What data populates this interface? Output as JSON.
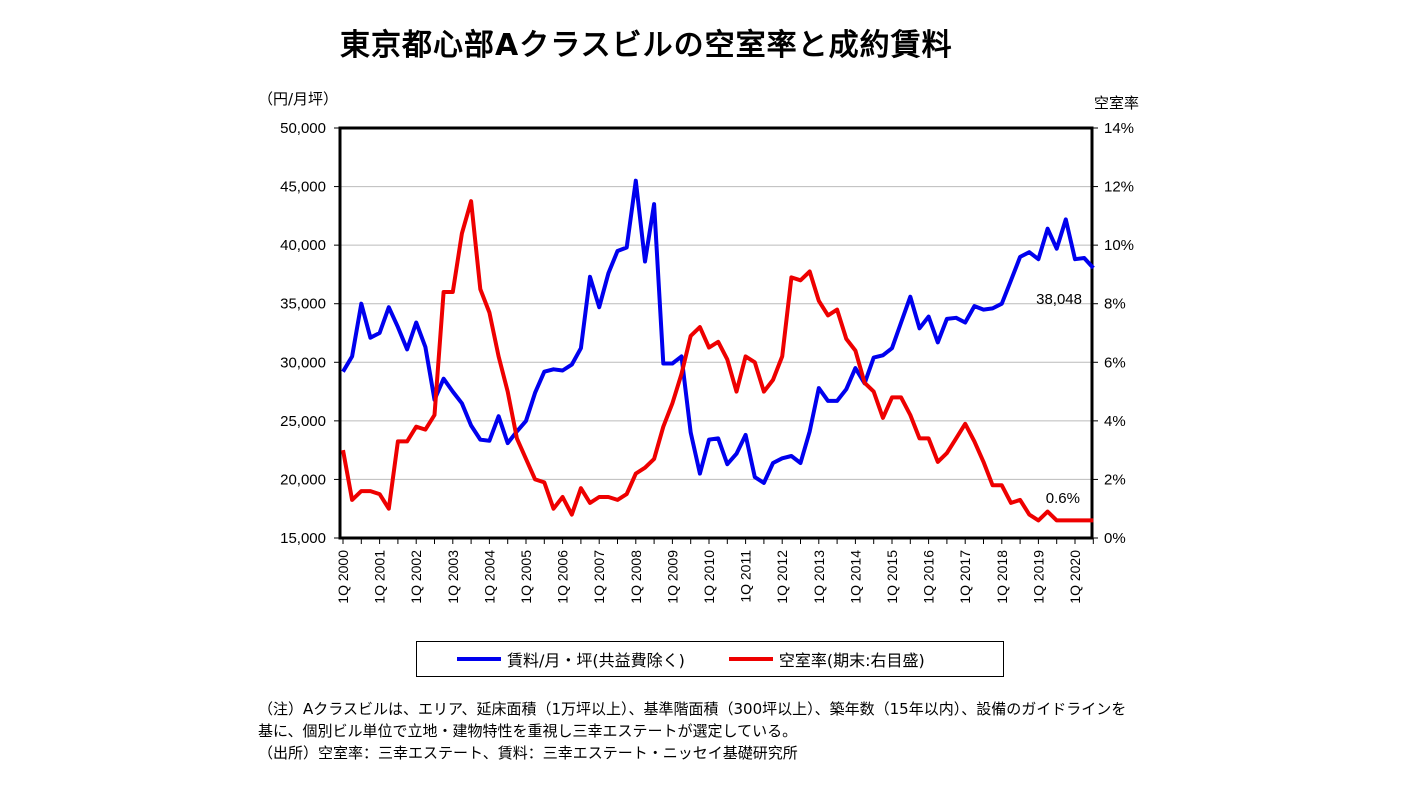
{
  "chart_data": {
    "type": "line",
    "title": "東京都心部Aクラスビルの空室率と成約賃料",
    "ylabel_left": "（円/月坪）",
    "ylabel_right": "空室率",
    "ylim_left": [
      15000,
      50000
    ],
    "yticks_left": [
      "15,000",
      "20,000",
      "25,000",
      "30,000",
      "35,000",
      "40,000",
      "45,000",
      "50,000"
    ],
    "ylim_right": [
      0,
      14
    ],
    "yticks_right": [
      "0%",
      "2%",
      "4%",
      "6%",
      "8%",
      "10%",
      "12%",
      "14%"
    ],
    "xticks": [
      "1Q 2000",
      "1Q 2001",
      "1Q 2002",
      "1Q 2003",
      "1Q 2004",
      "1Q 2005",
      "1Q 2006",
      "1Q 2007",
      "1Q 2008",
      "1Q 2009",
      "1Q 2010",
      "1Q 2011",
      "1Q 2012",
      "1Q 2013",
      "1Q 2014",
      "1Q 2015",
      "1Q 2016",
      "1Q 2017",
      "1Q 2018",
      "1Q 2019",
      "1Q 2020"
    ],
    "x_start": "1Q 2000",
    "x_end": "3Q 2020",
    "frequency": "quarterly",
    "grid": true,
    "legend_position": "bottom",
    "series": [
      {
        "name": "賃料/月・坪(共益費除く)",
        "axis": "left",
        "color": "#0000ee",
        "values": [
          29200,
          30500,
          35000,
          32100,
          32500,
          34700,
          33000,
          31100,
          33400,
          31300,
          26800,
          28600,
          27500,
          26500,
          24600,
          23400,
          23300,
          25400,
          23100,
          24100,
          25000,
          27400,
          29200,
          29400,
          29300,
          29800,
          31200,
          37300,
          34700,
          37600,
          39500,
          39800,
          45500,
          38600,
          43500,
          29900,
          29900,
          30500,
          24000,
          20500,
          23400,
          23500,
          21300,
          22200,
          23800,
          20200,
          19700,
          21400,
          21800,
          22000,
          21400,
          24100,
          27800,
          26700,
          26700,
          27700,
          29500,
          28200,
          30400,
          30600,
          31200,
          33400,
          35600,
          32900,
          33900,
          31700,
          33700,
          33800,
          33400,
          34800,
          34500,
          34600,
          35000,
          37000,
          39000,
          39400,
          38800,
          41400,
          39700,
          42200,
          38800,
          38900,
          38048
        ]
      },
      {
        "name": "空室率(期末:右目盛)",
        "axis": "right",
        "color": "#ee0000",
        "values": [
          3.0,
          1.3,
          1.6,
          1.6,
          1.5,
          1.0,
          3.3,
          3.3,
          3.8,
          3.7,
          4.2,
          8.4,
          8.4,
          10.4,
          11.5,
          8.5,
          7.7,
          6.2,
          5.0,
          3.4,
          2.7,
          2.0,
          1.9,
          1.0,
          1.4,
          0.8,
          1.7,
          1.2,
          1.4,
          1.4,
          1.3,
          1.5,
          2.2,
          2.4,
          2.7,
          3.8,
          4.6,
          5.6,
          6.9,
          7.2,
          6.5,
          6.7,
          6.1,
          5.0,
          6.2,
          6.0,
          5.0,
          5.4,
          6.2,
          8.9,
          8.8,
          9.1,
          8.1,
          7.6,
          7.8,
          6.8,
          6.4,
          5.3,
          5.0,
          4.1,
          4.8,
          4.8,
          4.2,
          3.4,
          3.4,
          2.6,
          2.9,
          3.4,
          3.9,
          3.3,
          2.6,
          1.8,
          1.8,
          1.2,
          1.3,
          0.8,
          0.6,
          0.9,
          0.6,
          0.6,
          0.6,
          0.6,
          0.6
        ]
      }
    ],
    "annotations": [
      "38,048",
      "0.6%"
    ]
  },
  "notes": [
    "（注）Aクラスビルは、エリア、延床面積（1万坪以上）、基準階面積（300坪以上）、築年数（15年以内）、設備のガイドラインを",
    "基に、個別ビル単位で立地・建物特性を重視し三幸エステートが選定している。",
    "（出所）空室率：三幸エステート、賃料：三幸エステート・ニッセイ基礎研究所"
  ]
}
